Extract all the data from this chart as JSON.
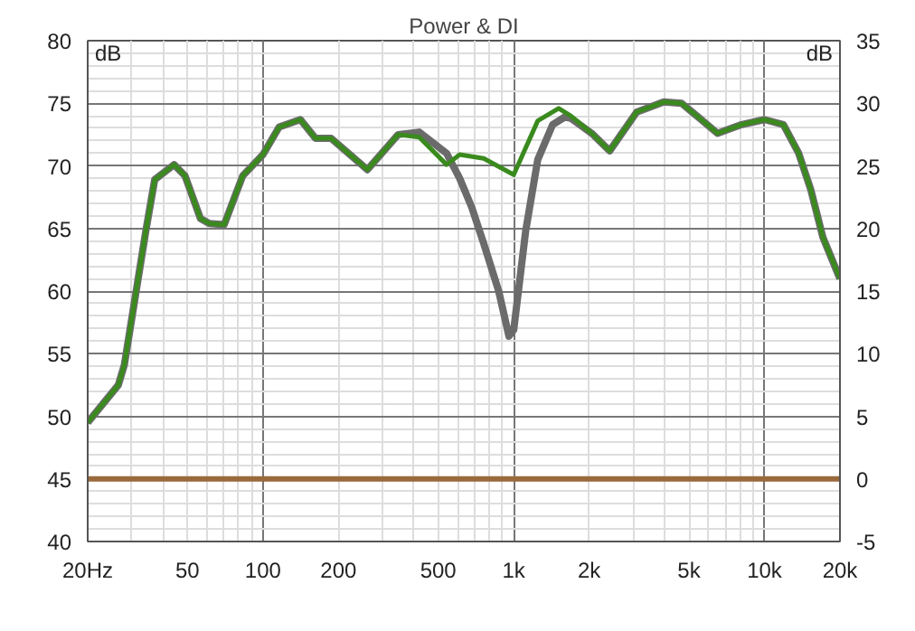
{
  "chart_data": {
    "type": "line",
    "title": "Power & DI",
    "ylabel": "dB",
    "y2label": "dB",
    "log": "x",
    "grid": true,
    "line_style": "solid",
    "marker": "none",
    "xlim": [
      20,
      20000
    ],
    "ylim": [
      40,
      80
    ],
    "y2lim": [
      -5,
      35
    ],
    "xticks": [
      {
        "value": 20,
        "label": "20Hz"
      },
      50,
      100,
      200,
      500,
      {
        "value": 1000,
        "label": "1k"
      },
      {
        "value": 2000,
        "label": "2k"
      },
      {
        "value": 5000,
        "label": "5k"
      },
      {
        "value": 10000,
        "label": "10k"
      },
      {
        "value": 20000,
        "label": "20k"
      }
    ],
    "yticks": [
      40,
      45,
      50,
      55,
      60,
      65,
      70,
      75,
      80
    ],
    "y2ticks": [
      -5,
      0,
      5,
      10,
      15,
      20,
      25,
      30,
      35
    ],
    "series": [
      {
        "color": "#6b6b6b",
        "x": [
          20,
          26.5,
          28,
          34.1,
          37,
          44.2,
          48.9,
          56.3,
          61.1,
          70,
          83,
          100,
          116,
          141,
          162,
          187,
          261,
          346,
          420,
          540,
          609,
          680,
          759,
          871,
          957,
          1000,
          1116,
          1247,
          1430,
          1597,
          1688,
          2046,
          2414,
          3093,
          3963,
          4671,
          5516,
          6498,
          8108,
          10000,
          11900,
          13700,
          15300,
          17100,
          19800,
          20000
        ],
        "values": [
          49.5,
          52.5,
          54.1,
          64.8,
          68.9,
          70.1,
          69.2,
          65.8,
          65.4,
          65.3,
          69.2,
          70.9,
          73.1,
          73.7,
          72.2,
          72.2,
          69.7,
          72.5,
          72.7,
          71.0,
          69.0,
          66.7,
          63.8,
          60.0,
          56.4,
          56.9,
          64.8,
          70.5,
          73.3,
          73.9,
          73.8,
          72.6,
          71.2,
          74.3,
          75.1,
          75.0,
          73.8,
          72.6,
          73.3,
          73.7,
          73.3,
          71.0,
          68.1,
          64.3,
          61.2,
          61.0
        ]
      },
      {
        "color": "#3a8a1e",
        "x": [
          20,
          26.5,
          28,
          34.1,
          37,
          44.2,
          48.9,
          56.3,
          61.1,
          70,
          83,
          100,
          116,
          141,
          162,
          187,
          261,
          346,
          420,
          540,
          609,
          759,
          1000,
          1247,
          1511,
          1688,
          2046,
          2414,
          3093,
          3963,
          4671,
          5516,
          6498,
          8108,
          10000,
          11900,
          13700,
          15300,
          17100,
          19800,
          20000
        ],
        "values": [
          49.5,
          52.5,
          54.1,
          64.8,
          68.9,
          70.1,
          69.2,
          65.8,
          65.4,
          65.3,
          69.2,
          70.9,
          73.1,
          73.7,
          72.2,
          72.2,
          69.7,
          72.5,
          72.3,
          70.1,
          70.9,
          70.6,
          69.3,
          73.6,
          74.6,
          74.0,
          72.6,
          71.2,
          74.3,
          75.1,
          75.0,
          73.8,
          72.6,
          73.3,
          73.7,
          73.3,
          71.0,
          68.1,
          64.3,
          61.2,
          61.0
        ]
      },
      {
        "color": "#9a6a3c",
        "axis": "y2",
        "x": [
          20,
          20000
        ],
        "values": [
          0,
          0
        ]
      }
    ]
  }
}
